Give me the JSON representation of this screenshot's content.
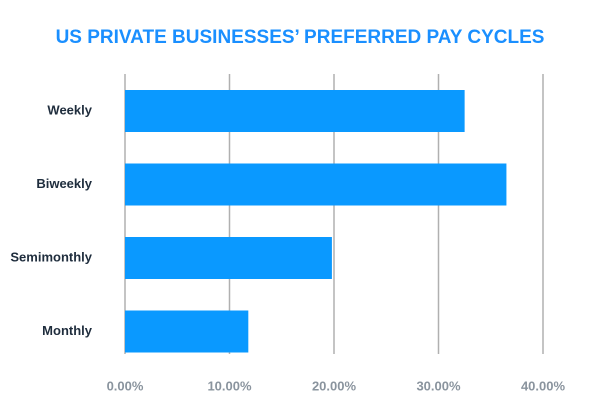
{
  "chart_data": {
    "type": "bar",
    "orientation": "horizontal",
    "title": "US PRIVATE BUSINESSES’ PREFERRED PAY CYCLES",
    "categories": [
      "Weekly",
      "Biweekly",
      "Semimonthly",
      "Monthly"
    ],
    "values": [
      32.5,
      36.5,
      19.8,
      11.8
    ],
    "color": "#0a99ff",
    "xlim": [
      0,
      40
    ],
    "xticks": [
      {
        "value": 0,
        "label": "0.00%"
      },
      {
        "value": 10,
        "label": "10.00%"
      },
      {
        "value": 20,
        "label": "20.00%"
      },
      {
        "value": 30,
        "label": "30.00%"
      },
      {
        "value": 40,
        "label": "40.00%"
      }
    ],
    "grid": true
  }
}
